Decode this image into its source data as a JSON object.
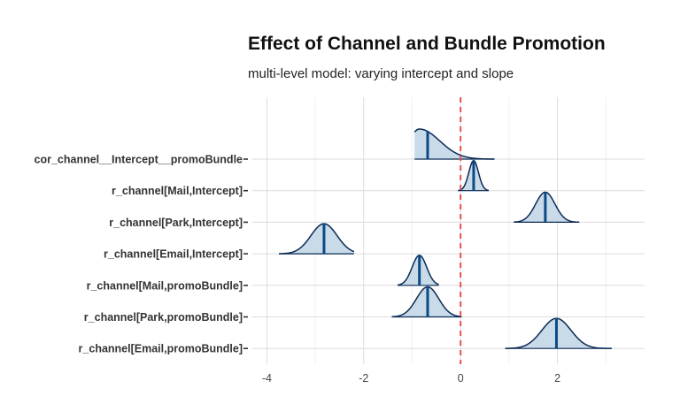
{
  "chart_data": {
    "type": "ridgeline",
    "title": "Effect of Channel and Bundle Promotion",
    "subtitle": "multi-level model: varying intercept and slope",
    "xlabel": "",
    "ylabel": "",
    "xlim": [
      -4.3,
      3.8
    ],
    "x_ticks": [
      -4,
      -2,
      0,
      2
    ],
    "x_tick_labels": [
      "-4",
      "-2",
      "0",
      "2"
    ],
    "reference_line": {
      "x": 0,
      "color": "#e8514f",
      "style": "dashed"
    },
    "grid": true,
    "fill_color": "#c6d9e8",
    "line_color": "#0b2a55",
    "median_color": "#0b4a85",
    "parameters": [
      {
        "name": "cor_channel__Intercept__promoBundle",
        "median": -0.68,
        "mode": -0.85,
        "sd_left": 0.22,
        "sd_right": 0.42,
        "min": -0.95,
        "max": 0.7
      },
      {
        "name": "r_channel[Mail,Intercept]",
        "median": 0.27,
        "mode": 0.27,
        "sd_left": 0.1,
        "sd_right": 0.1,
        "min": -0.05,
        "max": 0.58
      },
      {
        "name": "r_channel[Park,Intercept]",
        "median": 1.75,
        "mode": 1.75,
        "sd_left": 0.2,
        "sd_right": 0.2,
        "min": 1.1,
        "max": 2.45
      },
      {
        "name": "r_channel[Email,Intercept]",
        "median": -2.82,
        "mode": -2.82,
        "sd_left": 0.27,
        "sd_right": 0.27,
        "min": -3.75,
        "max": -2.2
      },
      {
        "name": "r_channel[Mail,promoBundle]",
        "median": -0.85,
        "mode": -0.85,
        "sd_left": 0.15,
        "sd_right": 0.15,
        "min": -1.3,
        "max": -0.45
      },
      {
        "name": "r_channel[Park,promoBundle]",
        "median": -0.68,
        "mode": -0.68,
        "sd_left": 0.23,
        "sd_right": 0.23,
        "min": -1.42,
        "max": 0.02
      },
      {
        "name": "r_channel[Email,promoBundle]",
        "median": 1.98,
        "mode": 1.98,
        "sd_left": 0.3,
        "sd_right": 0.3,
        "min": 0.92,
        "max": 3.12
      }
    ]
  }
}
